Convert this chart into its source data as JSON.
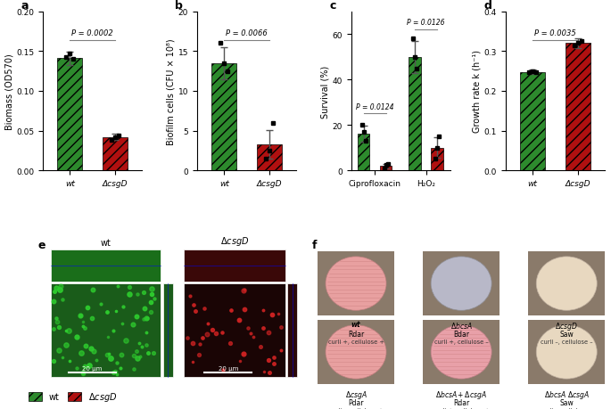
{
  "panel_a": {
    "categories": [
      "wt",
      "ΔcsgD"
    ],
    "values": [
      0.141,
      0.042
    ],
    "errors": [
      0.008,
      0.004
    ],
    "dots_wt": [
      0.143,
      0.147,
      0.14
    ],
    "dots_mut": [
      0.038,
      0.042,
      0.044
    ],
    "pvalue": "P = 0.0002",
    "ylabel": "Biomass (OD570)",
    "ylim": [
      0,
      0.2
    ],
    "yticks": [
      0.0,
      0.05,
      0.1,
      0.15,
      0.2
    ]
  },
  "panel_b": {
    "categories": [
      "wt",
      "ΔcsgD"
    ],
    "values": [
      13.5,
      3.3
    ],
    "errors": [
      2.0,
      1.8
    ],
    "dots_wt": [
      16.0,
      13.5,
      12.5
    ],
    "dots_mut": [
      1.5,
      2.5,
      6.0
    ],
    "pvalue": "P = 0.0066",
    "ylabel": "Biofilm cells (CFU × 10⁸)",
    "ylim": [
      0,
      20
    ],
    "yticks": [
      0,
      5,
      10,
      15,
      20
    ]
  },
  "panel_c": {
    "categories": [
      "Ciprofloxacin",
      "H₂O₂"
    ],
    "values_wt": [
      16.0,
      50.0
    ],
    "values_mut": [
      2.0,
      10.0
    ],
    "errors_wt": [
      3.5,
      7.0
    ],
    "errors_mut": [
      1.0,
      4.5
    ],
    "dots_wt_cipro": [
      20.0,
      17.0,
      13.0
    ],
    "dots_wt_h2o2": [
      58.0,
      50.0,
      45.0
    ],
    "dots_mut_cipro": [
      1.0,
      2.5,
      3.0
    ],
    "dots_mut_h2o2": [
      5.0,
      10.0,
      15.0
    ],
    "pvalue_cipro": "P = 0.0124",
    "pvalue_h2o2": "P = 0.0126",
    "ylabel": "Survival (%)",
    "ylim": [
      0,
      70
    ],
    "yticks": [
      0,
      20,
      40,
      60
    ]
  },
  "panel_d": {
    "categories": [
      "wt",
      "ΔcsgD"
    ],
    "values": [
      0.248,
      0.32
    ],
    "errors": [
      0.005,
      0.012
    ],
    "dots_wt": [
      0.248,
      0.25,
      0.246
    ],
    "dots_mut": [
      0.315,
      0.32,
      0.325
    ],
    "pvalue": "P = 0.0035",
    "ylabel": "Growth rate k (h⁻¹)",
    "ylim": [
      0,
      0.4
    ],
    "yticks": [
      0.0,
      0.1,
      0.2,
      0.3,
      0.4
    ]
  },
  "colors": {
    "wt_green": "#2d8a2d",
    "mut_red": "#b01010",
    "hatch": "///",
    "error_color": "#555555",
    "dot_color": "#111111"
  },
  "legend": {
    "wt_label": "wt",
    "mut_label": "ΔcsgD"
  }
}
